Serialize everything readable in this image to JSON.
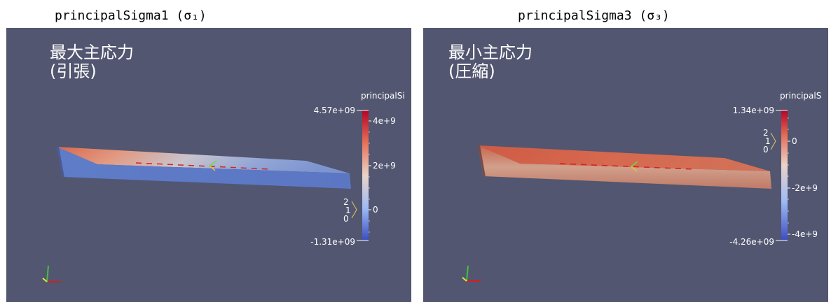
{
  "left": {
    "caption": "principalSigma1 (σ₁)",
    "title_line1": "最大主応力",
    "title_line2": "(引張)",
    "colorbar": {
      "name": "principalSi",
      "max_label": "4.57e+09",
      "min_label": "-1.31e+09",
      "ticks": [
        "4e+9",
        "2e+9",
        "0"
      ],
      "range": [
        -1310000000,
        4570000000
      ]
    },
    "triad": [
      "2",
      "1",
      "0"
    ]
  },
  "right": {
    "caption": "principalSigma3 (σ₃)",
    "title_line1": "最小主応力",
    "title_line2": "(圧縮)",
    "colorbar": {
      "name": "principalS",
      "max_label": "1.34e+09",
      "min_label": "-4.26e+09",
      "ticks": [
        "0",
        "-2e+9",
        "-4e+9"
      ],
      "range": [
        -4260000000,
        1340000000
      ]
    },
    "triad": [
      "2",
      "1",
      "0"
    ]
  },
  "colors": {
    "background": "#525670",
    "colormap_high": "#c8312e",
    "colormap_mid": "#dcdcdc",
    "colormap_low": "#3b4cc0"
  }
}
